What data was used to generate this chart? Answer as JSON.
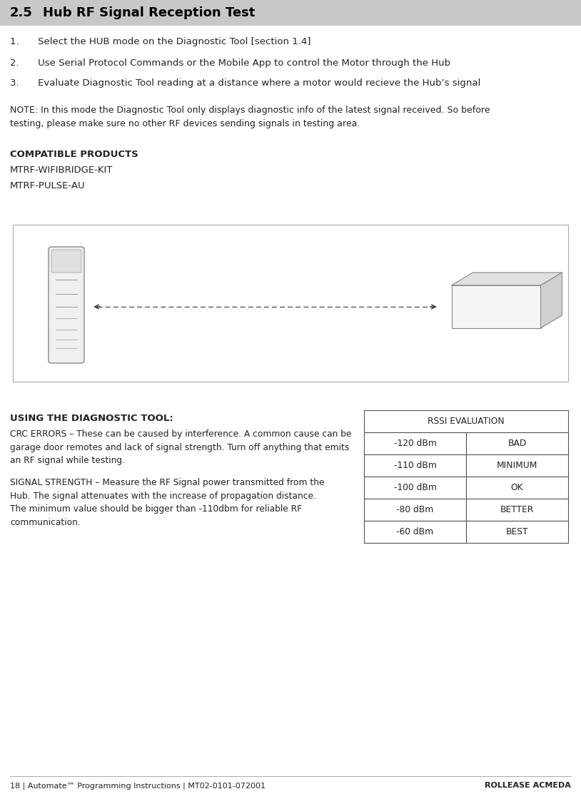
{
  "page_bg": "#ffffff",
  "header_bg": "#c8c8c8",
  "header_text_num": "2.5",
  "header_text_title": "Hub RF Signal Reception Test",
  "header_fontsize": 13,
  "steps": [
    "1.  Select the HUB mode on the Diagnostic Tool [section 1.4]",
    "2.  Use Serial Protocol Commands or the Mobile App to control the Motor through the Hub",
    "3.  Evaluate Diagnostic Tool reading at a distance where a motor would recieve the Hub’s signal"
  ],
  "note_text": "NOTE: In this mode the Diagnostic Tool only displays diagnostic info of the latest signal received. So before\ntesting, please make sure no other RF devices sending signals in testing area.",
  "compatible_header": "COMPATIBLE PRODUCTS",
  "compatible_items": [
    "MTRF-WIFIBRIDGE-KIT",
    "MTRF-PULSE-AU"
  ],
  "diag_header": "USING THE DIAGNOSTIC TOOL:",
  "crc_text": "CRC ERRORS – These can be caused by interference. A common cause can be\ngarage door remotes and lack of signal strength. Turn off anything that emits\nan RF signal while testing.",
  "signal_text": "SIGNAL STRENGTH – Measure the RF Signal power transmitted from the\nHub. The signal attenuates with the increase of propagation distance.\nThe minimum value should be bigger than -110dbm for reliable RF\ncommunication.",
  "rssi_header": "RSSI EVALUATION",
  "rssi_rows": [
    [
      "-120 dBm",
      "BAD"
    ],
    [
      "-110 dBm",
      "MINIMUM"
    ],
    [
      "-100 dBm",
      "OK"
    ],
    [
      "-80 dBm",
      "BETTER"
    ],
    [
      "-60 dBm",
      "BEST"
    ]
  ],
  "footer_left": "18 | Automate™ Programming Instructions | MT02-0101-072001",
  "footer_right": "ROLLEASE ACMEDA",
  "text_color": "#222222",
  "header_text_color": "#000000",
  "border_color": "#aaaaaa"
}
